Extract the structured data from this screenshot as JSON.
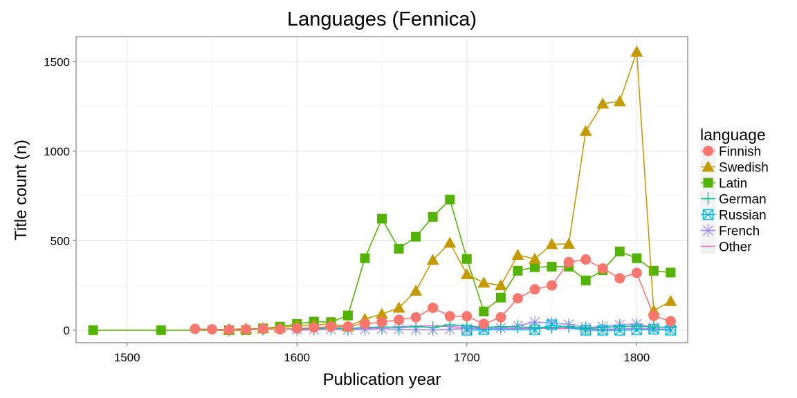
{
  "chart_data": {
    "type": "line",
    "title": "Languages (Fennica)",
    "xlabel": "Publication year",
    "ylabel": "Title count (n)",
    "xlim": [
      1470,
      1830
    ],
    "ylim": [
      -70,
      1640
    ],
    "xticks": [
      "1500",
      "1600",
      "1700",
      "1800"
    ],
    "yticks": [
      "0",
      "500",
      "1000",
      "1500"
    ],
    "grid": true,
    "legend": {
      "title": "language",
      "position": "right"
    },
    "series": [
      {
        "name": "Finnish",
        "color": "#F8766D",
        "marker": "circle",
        "points": [
          [
            1540,
            7
          ],
          [
            1550,
            5
          ],
          [
            1560,
            3
          ],
          [
            1570,
            5
          ],
          [
            1580,
            8
          ],
          [
            1590,
            5
          ],
          [
            1600,
            10
          ],
          [
            1610,
            15
          ],
          [
            1620,
            20
          ],
          [
            1630,
            20
          ],
          [
            1640,
            35
          ],
          [
            1650,
            45
          ],
          [
            1660,
            58
          ],
          [
            1670,
            72
          ],
          [
            1680,
            125
          ],
          [
            1690,
            78
          ],
          [
            1700,
            78
          ],
          [
            1710,
            35
          ],
          [
            1720,
            72
          ],
          [
            1730,
            178
          ],
          [
            1740,
            228
          ],
          [
            1750,
            250
          ],
          [
            1760,
            380
          ],
          [
            1770,
            395
          ],
          [
            1780,
            345
          ],
          [
            1790,
            290
          ],
          [
            1800,
            320
          ],
          [
            1810,
            80
          ],
          [
            1820,
            50
          ]
        ]
      },
      {
        "name": "Swedish",
        "color": "#C49A00",
        "marker": "triangle",
        "points": [
          [
            1560,
            5
          ],
          [
            1570,
            8
          ],
          [
            1580,
            10
          ],
          [
            1590,
            15
          ],
          [
            1600,
            25
          ],
          [
            1610,
            30
          ],
          [
            1620,
            35
          ],
          [
            1630,
            20
          ],
          [
            1640,
            62
          ],
          [
            1650,
            90
          ],
          [
            1660,
            125
          ],
          [
            1670,
            220
          ],
          [
            1680,
            392
          ],
          [
            1690,
            488
          ],
          [
            1700,
            312
          ],
          [
            1710,
            265
          ],
          [
            1720,
            250
          ],
          [
            1730,
            420
          ],
          [
            1740,
            398
          ],
          [
            1750,
            480
          ],
          [
            1760,
            482
          ],
          [
            1770,
            1112
          ],
          [
            1780,
            1265
          ],
          [
            1790,
            1278
          ],
          [
            1800,
            1555
          ],
          [
            1810,
            110
          ],
          [
            1820,
            162
          ]
        ]
      },
      {
        "name": "Latin",
        "color": "#53B400",
        "marker": "square",
        "points": [
          [
            1480,
            0
          ],
          [
            1520,
            0
          ],
          [
            1560,
            0
          ],
          [
            1570,
            0
          ],
          [
            1580,
            10
          ],
          [
            1590,
            20
          ],
          [
            1600,
            35
          ],
          [
            1610,
            48
          ],
          [
            1620,
            45
          ],
          [
            1630,
            82
          ],
          [
            1640,
            402
          ],
          [
            1650,
            623
          ],
          [
            1660,
            455
          ],
          [
            1670,
            522
          ],
          [
            1680,
            633
          ],
          [
            1690,
            730
          ],
          [
            1700,
            398
          ],
          [
            1710,
            105
          ],
          [
            1720,
            182
          ],
          [
            1730,
            332
          ],
          [
            1740,
            352
          ],
          [
            1750,
            355
          ],
          [
            1760,
            355
          ],
          [
            1770,
            278
          ],
          [
            1780,
            335
          ],
          [
            1790,
            440
          ],
          [
            1800,
            402
          ],
          [
            1810,
            332
          ],
          [
            1820,
            322
          ]
        ]
      },
      {
        "name": "German",
        "color": "#00C094",
        "marker": "plus",
        "points": [
          [
            1560,
            0
          ],
          [
            1580,
            5
          ],
          [
            1600,
            8
          ],
          [
            1610,
            10
          ],
          [
            1620,
            12
          ],
          [
            1630,
            10
          ],
          [
            1640,
            15
          ],
          [
            1650,
            18
          ],
          [
            1660,
            15
          ],
          [
            1670,
            20
          ],
          [
            1680,
            15
          ],
          [
            1690,
            30
          ],
          [
            1700,
            25
          ],
          [
            1710,
            15
          ],
          [
            1720,
            20
          ],
          [
            1730,
            18
          ],
          [
            1740,
            15
          ],
          [
            1750,
            15
          ],
          [
            1760,
            20
          ],
          [
            1770,
            10
          ],
          [
            1780,
            15
          ],
          [
            1790,
            20
          ],
          [
            1800,
            22
          ],
          [
            1810,
            18
          ],
          [
            1820,
            15
          ]
        ]
      },
      {
        "name": "Russian",
        "color": "#00B6EB",
        "marker": "square-x",
        "points": [
          [
            1700,
            0
          ],
          [
            1710,
            3
          ],
          [
            1740,
            2
          ],
          [
            1750,
            30
          ],
          [
            1770,
            0
          ],
          [
            1780,
            0
          ],
          [
            1790,
            0
          ],
          [
            1800,
            2
          ],
          [
            1810,
            5
          ],
          [
            1820,
            0
          ]
        ]
      },
      {
        "name": "French",
        "color": "#A58AFF",
        "marker": "asterisk",
        "points": [
          [
            1600,
            2
          ],
          [
            1610,
            5
          ],
          [
            1620,
            5
          ],
          [
            1630,
            3
          ],
          [
            1640,
            5
          ],
          [
            1650,
            8
          ],
          [
            1660,
            5
          ],
          [
            1670,
            3
          ],
          [
            1680,
            2
          ],
          [
            1690,
            5
          ],
          [
            1700,
            10
          ],
          [
            1710,
            8
          ],
          [
            1720,
            12
          ],
          [
            1730,
            25
          ],
          [
            1740,
            45
          ],
          [
            1750,
            40
          ],
          [
            1760,
            32
          ],
          [
            1770,
            15
          ],
          [
            1780,
            20
          ],
          [
            1790,
            30
          ],
          [
            1800,
            35
          ],
          [
            1810,
            15
          ],
          [
            1820,
            20
          ]
        ]
      },
      {
        "name": "Other",
        "color": "#FB61D7",
        "marker": "none",
        "points": [
          [
            1600,
            0
          ],
          [
            1620,
            5
          ],
          [
            1640,
            10
          ],
          [
            1660,
            20
          ],
          [
            1680,
            25
          ],
          [
            1690,
            20
          ],
          [
            1700,
            15
          ],
          [
            1720,
            10
          ],
          [
            1740,
            10
          ],
          [
            1760,
            10
          ],
          [
            1780,
            5
          ],
          [
            1800,
            10
          ],
          [
            1820,
            5
          ]
        ]
      }
    ]
  }
}
